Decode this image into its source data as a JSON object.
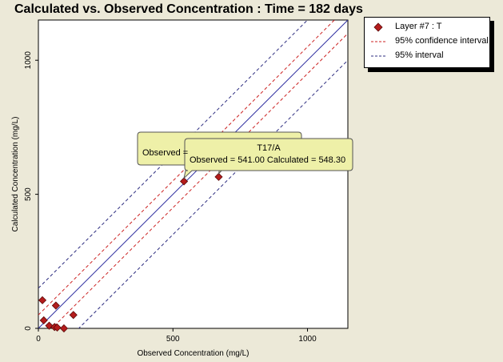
{
  "chart_data": {
    "type": "scatter",
    "title": "Calculated vs. Observed Concentration : Time = 182 days",
    "xlabel": "Observed Concentration (mg/L)",
    "ylabel": "Calculated Concentration (mg/L)",
    "xlim": [
      0,
      1150
    ],
    "ylim": [
      0,
      1150
    ],
    "x_ticks": [
      "0",
      "500",
      "1000"
    ],
    "y_ticks": [
      "0",
      "500",
      "1000"
    ],
    "grid": false,
    "legend_position": "outside-right-top",
    "series": [
      {
        "name": "Layer #7 : T",
        "marker": "diamond",
        "color": "#b41c1c",
        "points": [
          {
            "x": 15,
            "y": 105
          },
          {
            "x": 20,
            "y": 30
          },
          {
            "x": 40,
            "y": 10
          },
          {
            "x": 60,
            "y": 5
          },
          {
            "x": 65,
            "y": 85
          },
          {
            "x": 70,
            "y": 3
          },
          {
            "x": 95,
            "y": 0
          },
          {
            "x": 130,
            "y": 50
          },
          {
            "x": 541,
            "y": 548.3
          },
          {
            "x": 670,
            "y": 565
          }
        ]
      }
    ],
    "lines": [
      {
        "name": "identity",
        "style": "solid",
        "color": "#2d2da0",
        "offset": 0
      },
      {
        "name": "95% confidence interval",
        "style": "dashed",
        "color": "#cc2222",
        "offset": 50
      },
      {
        "name": "95% interval",
        "style": "dashed",
        "color": "#2d2d80",
        "offset": 150
      }
    ],
    "legend_entries": [
      {
        "label": "Layer #7 : T",
        "kind": "marker",
        "color": "#b41c1c"
      },
      {
        "label": "95% confidence interval",
        "kind": "dash",
        "color": "#cc2222"
      },
      {
        "label": "95% interval",
        "kind": "dash",
        "color": "#2d2d80"
      }
    ],
    "callouts": [
      {
        "line1": "",
        "line2": "Observed =",
        "x": 670,
        "y": 565,
        "back": true
      },
      {
        "line1": "T17/A",
        "line2": "Observed = 541.00 Calculated = 548.30",
        "x": 541,
        "y": 548.3,
        "back": false
      }
    ]
  }
}
